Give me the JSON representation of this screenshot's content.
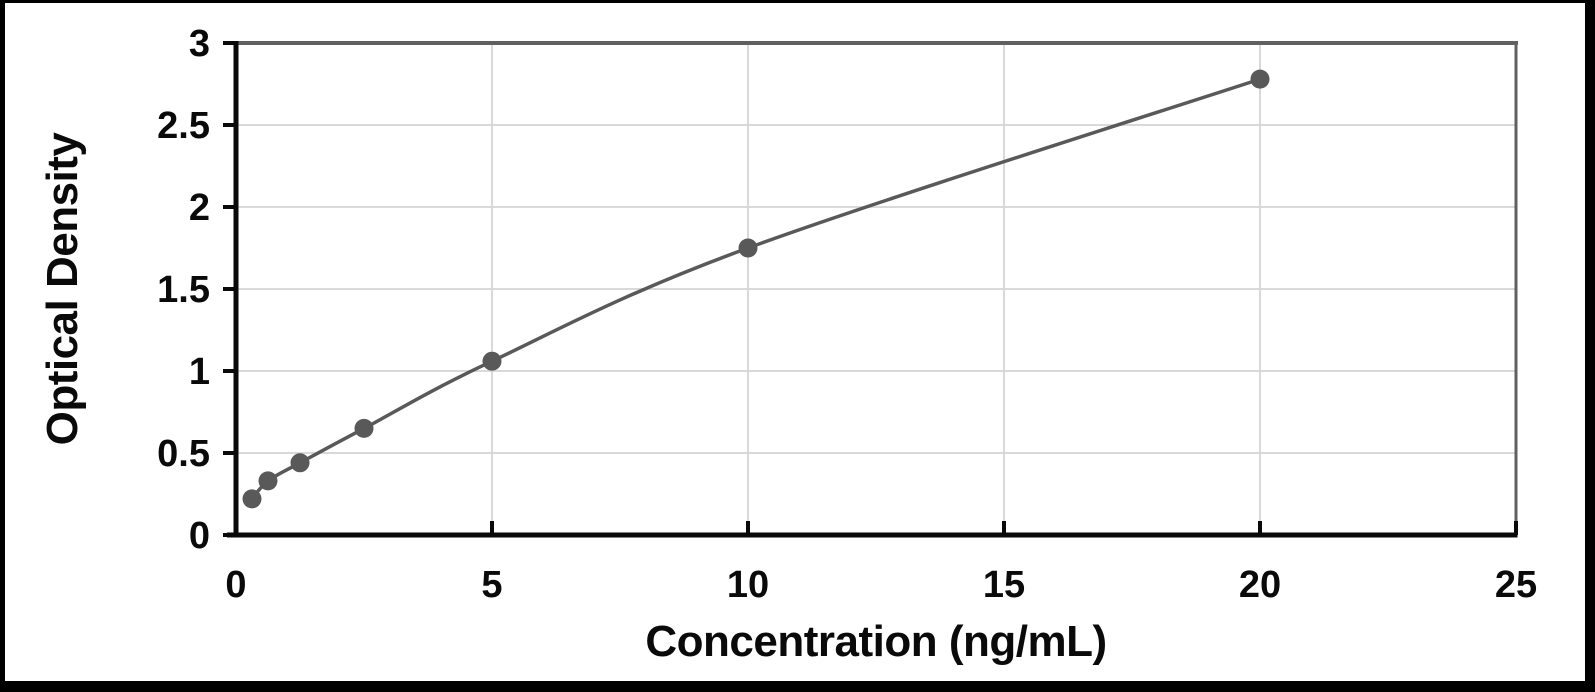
{
  "figure": {
    "frame_color": "#000000",
    "background_color": "#ffffff"
  },
  "chart_data": {
    "type": "line",
    "title": "",
    "xlabel": "Concentration (ng/mL)",
    "ylabel": "Optical Density",
    "xlim": [
      0,
      25
    ],
    "ylim": [
      0,
      3
    ],
    "x_ticks": [
      0,
      5,
      10,
      15,
      20,
      25
    ],
    "y_ticks": [
      0,
      0.5,
      1,
      1.5,
      2,
      2.5,
      3
    ],
    "grid": true,
    "legend_position": "none",
    "series": [
      {
        "x": [
          0.313,
          0.625,
          1.25,
          2.5,
          5,
          10,
          20
        ],
        "y": [
          0.22,
          0.33,
          0.44,
          0.65,
          1.06,
          1.75,
          2.78
        ],
        "marker": "circle",
        "line_style": "smooth",
        "color": "#595959"
      }
    ]
  },
  "style": {
    "line_color": "#595959",
    "marker_color": "#595959",
    "gridline_color": "#d9d9d9",
    "plot_border_color": "#616161",
    "axis_color": "#0a0a0a",
    "text_color": "#0a0a0a"
  }
}
